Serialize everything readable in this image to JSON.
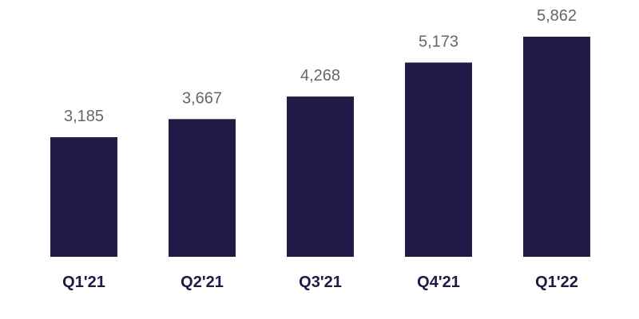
{
  "chart_data": {
    "type": "bar",
    "title": "",
    "xlabel": "",
    "ylabel": "",
    "categories": [
      "Q1'21",
      "Q2'21",
      "Q3'21",
      "Q4'21",
      "Q1'22"
    ],
    "values": [
      3185,
      3667,
      4268,
      5173,
      5862
    ],
    "value_labels": [
      "3,185",
      "3,667",
      "4,268",
      "5,173",
      "5,862"
    ],
    "ylim": [
      0,
      5862
    ],
    "grid": false,
    "legend": "none",
    "colors": {
      "bar": "#211a47",
      "value_text": "#666666",
      "category_text": "#211a47",
      "background": "#ffffff"
    }
  }
}
